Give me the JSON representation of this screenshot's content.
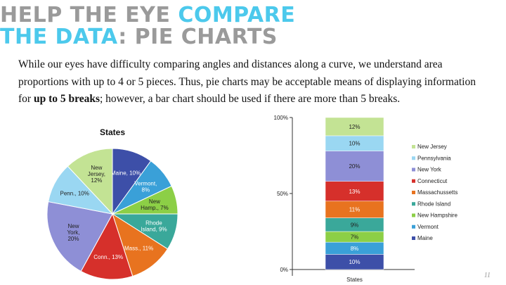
{
  "slide": {
    "title_line1_a": "HELP THE EYE ",
    "title_line1_b": "COMPARE",
    "title_line2_a": "THE DATA",
    "title_line2_b": ": PIE CHARTS",
    "body_1": "While our eyes have difficulty comparing angles and distances along a curve, we understand area proportions with up to 4 or 5 pieces.  Thus, pie charts may be acceptable means of displaying information for ",
    "body_bold": "up to 5 breaks",
    "body_2": "; however, a bar chart should be used if there are more than 5 breaks.",
    "page_number": "11"
  },
  "chart_data": [
    {
      "type": "pie",
      "title": "States",
      "categories": [
        "Maine",
        "Vermont",
        "New Hampshire",
        "Rhode Island",
        "Massachussetts",
        "Connecticut",
        "New York",
        "Pennsylvania",
        "New Jersey"
      ],
      "values": [
        10,
        8,
        7,
        9,
        11,
        13,
        20,
        10,
        12
      ],
      "data_labels": [
        "Maine, 10%",
        "Vermont, 8%",
        "New Hamp., 7%",
        "Rhode Island, 9%",
        "Mass., 11%",
        "Conn., 13%",
        "New York, 20%",
        "Penn., 10%",
        "New Jersey, 12%"
      ],
      "colors": [
        "#3d4fa8",
        "#3aa0d8",
        "#8ccf46",
        "#3aa89a",
        "#e8731f",
        "#d6302b",
        "#8e8fd6",
        "#9ad7f2",
        "#c3e394"
      ]
    },
    {
      "type": "bar",
      "stacked": true,
      "xlabel": "States",
      "categories": [
        "States"
      ],
      "ylim": [
        0,
        100
      ],
      "y_ticks": [
        "0%",
        "50%",
        "100%"
      ],
      "legend_position": "right",
      "series": [
        {
          "name": "Maine",
          "value": 10,
          "label": "10%",
          "color": "#3d4fa8"
        },
        {
          "name": "Vermont",
          "value": 8,
          "label": "8%",
          "color": "#3aa0d8"
        },
        {
          "name": "New Hampshire",
          "value": 7,
          "label": "7%",
          "color": "#8ccf46"
        },
        {
          "name": "Rhode Island",
          "value": 9,
          "label": "9%",
          "color": "#3aa89a"
        },
        {
          "name": "Massachussetts",
          "value": 11,
          "label": "11%",
          "color": "#e8731f"
        },
        {
          "name": "Connecticut",
          "value": 13,
          "label": "13%",
          "color": "#d6302b"
        },
        {
          "name": "New York",
          "value": 20,
          "label": "20%",
          "color": "#8e8fd6"
        },
        {
          "name": "Pennsylvania",
          "value": 10,
          "label": "10%",
          "color": "#9ad7f2"
        },
        {
          "name": "New Jersey",
          "value": 12,
          "label": "12%",
          "color": "#c3e394"
        }
      ]
    }
  ]
}
